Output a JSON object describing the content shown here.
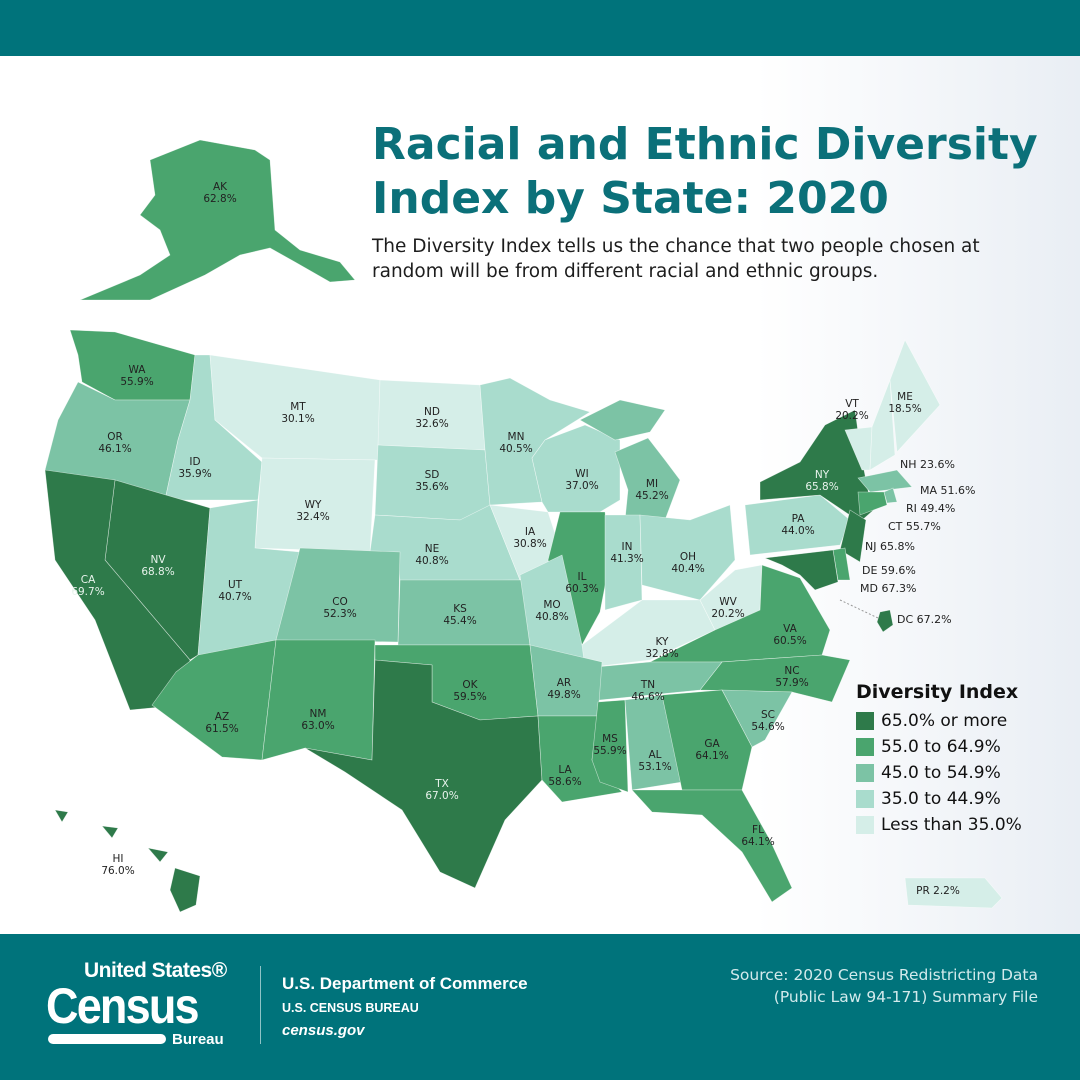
{
  "header": {
    "title_line1": "Racial and Ethnic Diversity",
    "title_line2": "Index by State: 2020",
    "subtitle": "The Diversity Index tells us the chance that two people chosen at random will be from different racial and ethnic groups."
  },
  "legend": {
    "title": "Diversity Index",
    "bins": [
      {
        "label": "65.0% or more",
        "min": 65.0,
        "color": "#2e7a4a"
      },
      {
        "label": "55.0 to 64.9%",
        "min": 55.0,
        "color": "#4aa56e"
      },
      {
        "label": "45.0 to 54.9%",
        "min": 45.0,
        "color": "#7cc3a5"
      },
      {
        "label": "35.0 to 44.9%",
        "min": 35.0,
        "color": "#a9dccd"
      },
      {
        "label": "Less than 35.0%",
        "min": 0,
        "color": "#d5eee8"
      }
    ]
  },
  "states": {
    "AK": {
      "abbr": "AK",
      "value": "62.8%"
    },
    "WA": {
      "abbr": "WA",
      "value": "55.9%"
    },
    "OR": {
      "abbr": "OR",
      "value": "46.1%"
    },
    "ID": {
      "abbr": "ID",
      "value": "35.9%"
    },
    "MT": {
      "abbr": "MT",
      "value": "30.1%"
    },
    "ND": {
      "abbr": "ND",
      "value": "32.6%"
    },
    "MN": {
      "abbr": "MN",
      "value": "40.5%"
    },
    "WI": {
      "abbr": "WI",
      "value": "37.0%"
    },
    "MI": {
      "abbr": "MI",
      "value": "45.2%"
    },
    "SD": {
      "abbr": "SD",
      "value": "35.6%"
    },
    "WY": {
      "abbr": "WY",
      "value": "32.4%"
    },
    "NE": {
      "abbr": "NE",
      "value": "40.8%"
    },
    "IA": {
      "abbr": "IA",
      "value": "30.8%"
    },
    "IL": {
      "abbr": "IL",
      "value": "60.3%"
    },
    "IN": {
      "abbr": "IN",
      "value": "41.3%"
    },
    "OH": {
      "abbr": "OH",
      "value": "40.4%"
    },
    "PA": {
      "abbr": "PA",
      "value": "44.0%"
    },
    "NY": {
      "abbr": "NY",
      "value": "65.8%"
    },
    "VT": {
      "abbr": "VT",
      "value": "20.2%"
    },
    "ME": {
      "abbr": "ME",
      "value": "18.5%"
    },
    "NH": {
      "abbr": "NH",
      "value": "23.6%"
    },
    "MA": {
      "abbr": "MA",
      "value": "51.6%"
    },
    "RI": {
      "abbr": "RI",
      "value": "49.4%"
    },
    "CT": {
      "abbr": "CT",
      "value": "55.7%"
    },
    "NJ": {
      "abbr": "NJ",
      "value": "65.8%"
    },
    "DE": {
      "abbr": "DE",
      "value": "59.6%"
    },
    "MD": {
      "abbr": "MD",
      "value": "67.3%"
    },
    "DC": {
      "abbr": "DC",
      "value": "67.2%"
    },
    "NV": {
      "abbr": "NV",
      "value": "68.8%"
    },
    "CA": {
      "abbr": "CA",
      "value": "69.7%"
    },
    "UT": {
      "abbr": "UT",
      "value": "40.7%"
    },
    "CO": {
      "abbr": "CO",
      "value": "52.3%"
    },
    "KS": {
      "abbr": "KS",
      "value": "45.4%"
    },
    "MO": {
      "abbr": "MO",
      "value": "40.8%"
    },
    "KY": {
      "abbr": "KY",
      "value": "32.8%"
    },
    "WV": {
      "abbr": "WV",
      "value": "20.2%"
    },
    "VA": {
      "abbr": "VA",
      "value": "60.5%"
    },
    "NC": {
      "abbr": "NC",
      "value": "57.9%"
    },
    "TN": {
      "abbr": "TN",
      "value": "46.6%"
    },
    "SC": {
      "abbr": "SC",
      "value": "54.6%"
    },
    "AZ": {
      "abbr": "AZ",
      "value": "61.5%"
    },
    "NM": {
      "abbr": "NM",
      "value": "63.0%"
    },
    "OK": {
      "abbr": "OK",
      "value": "59.5%"
    },
    "TX": {
      "abbr": "TX",
      "value": "67.0%"
    },
    "AR": {
      "abbr": "AR",
      "value": "49.8%"
    },
    "LA": {
      "abbr": "LA",
      "value": "58.6%"
    },
    "MS": {
      "abbr": "MS",
      "value": "55.9%"
    },
    "AL": {
      "abbr": "AL",
      "value": "53.1%"
    },
    "GA": {
      "abbr": "GA",
      "value": "64.1%"
    },
    "FL": {
      "abbr": "FL",
      "value": "64.1%"
    },
    "HI": {
      "abbr": "HI",
      "value": "76.0%"
    },
    "PR": {
      "abbr": "PR",
      "value": "2.2%"
    }
  },
  "footer": {
    "logo_line1": "United States®",
    "logo_line2": "Census",
    "logo_line3": "Bureau",
    "dept": "U.S. Department of Commerce",
    "bureau": "U.S. CENSUS BUREAU",
    "website": "census.gov",
    "source_line1": "Source: 2020 Census Redistricting Data",
    "source_line2": "(Public Law 94-171) Summary File"
  }
}
